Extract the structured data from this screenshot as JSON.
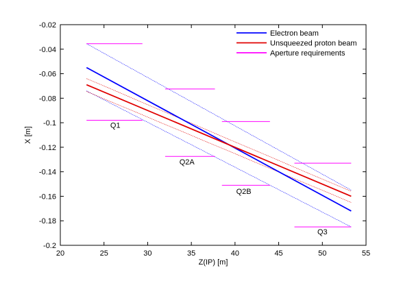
{
  "chart_data": {
    "type": "line",
    "xlabel": "Z(IP) [m]",
    "ylabel": "X [m]",
    "xlim": [
      20,
      55
    ],
    "ylim": [
      -0.2,
      -0.02
    ],
    "xticks": [
      "20",
      "25",
      "30",
      "35",
      "40",
      "45",
      "50",
      "55"
    ],
    "yticks": [
      "-0.02",
      "-0.04",
      "-0.06",
      "-0.08",
      "-0.1",
      "-0.12",
      "-0.14",
      "-0.16",
      "-0.18",
      "-0.2"
    ],
    "grid": false,
    "legend_position": "top-right",
    "series": [
      {
        "name": "Electron beam",
        "color": "#0000ff",
        "x": [
          23,
          53.3
        ],
        "y": [
          -0.055,
          -0.172
        ]
      },
      {
        "name": "Unsqueezed proton beam",
        "color": "#e00000",
        "x": [
          23,
          53.3
        ],
        "y": [
          -0.069,
          -0.16
        ]
      },
      {
        "name": "Aperture requirements",
        "color": "#ff00ff",
        "segments": [
          {
            "x": [
              23,
              29.4
            ],
            "y": [
              -0.0355,
              -0.0355
            ]
          },
          {
            "x": [
              23,
              29.4
            ],
            "y": [
              -0.098,
              -0.098
            ]
          },
          {
            "x": [
              32,
              37.7
            ],
            "y": [
              -0.0725,
              -0.0725
            ]
          },
          {
            "x": [
              32,
              37.7
            ],
            "y": [
              -0.1275,
              -0.1275
            ]
          },
          {
            "x": [
              38.5,
              44
            ],
            "y": [
              -0.099,
              -0.099
            ]
          },
          {
            "x": [
              38.5,
              44
            ],
            "y": [
              -0.151,
              -0.151
            ]
          },
          {
            "x": [
              46.8,
              53.3
            ],
            "y": [
              -0.133,
              -0.133
            ]
          },
          {
            "x": [
              46.8,
              53.3
            ],
            "y": [
              -0.185,
              -0.185
            ]
          }
        ]
      }
    ],
    "envelopes": [
      {
        "of": "Electron beam",
        "color": "#0000ff",
        "upper": {
          "x": [
            23,
            53.3
          ],
          "y": [
            -0.0355,
            -0.155
          ]
        },
        "lower": {
          "x": [
            23,
            53.3
          ],
          "y": [
            -0.074,
            -0.185
          ]
        }
      },
      {
        "of": "Unsqueezed proton beam",
        "color": "#e00000",
        "upper": {
          "x": [
            23,
            53.3
          ],
          "y": [
            -0.064,
            -0.156
          ]
        },
        "lower": {
          "x": [
            23,
            53.3
          ],
          "y": [
            -0.0745,
            -0.165
          ]
        }
      }
    ],
    "annotations": [
      {
        "text": "Q1",
        "x": 26.3,
        "y": -0.104
      },
      {
        "text": "Q2A",
        "x": 34.5,
        "y": -0.134
      },
      {
        "text": "Q2B",
        "x": 41,
        "y": -0.158
      },
      {
        "text": "Q3",
        "x": 50,
        "y": -0.191
      }
    ]
  }
}
